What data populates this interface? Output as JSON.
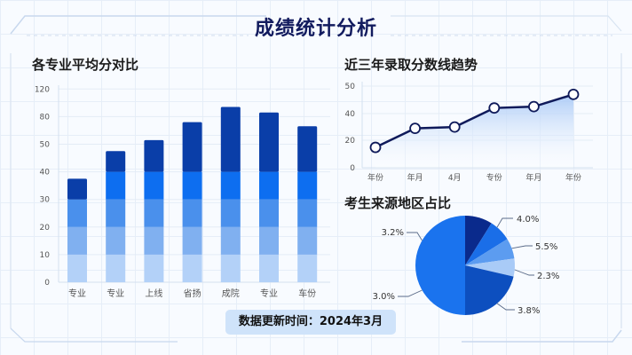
{
  "page": {
    "title": "成绩统计分析",
    "footer": "数据更新时间：2024年3月"
  },
  "colors": {
    "title": "#121b5e",
    "bar_segments": [
      "#b3d1f8",
      "#80b0f0",
      "#4a90ec",
      "#0d6ef0",
      "#0a3ea8"
    ],
    "line": "#0f1a5a",
    "area_top": "#a9c9f6",
    "pie": [
      "#0a2a8c",
      "#1a6ee8",
      "#5c9cf0",
      "#a9cbf7",
      "#0d4fbf",
      "#1a73ee"
    ]
  },
  "chart_data": [
    {
      "type": "bar",
      "title": "各专业平均分对比",
      "categories": [
        "专业",
        "专业",
        "上线",
        "省扬",
        "成院",
        "专业",
        "车份"
      ],
      "y_tick_labels": [
        "0",
        "10",
        "20",
        "30",
        "40",
        "50",
        "80",
        "120"
      ],
      "values": [
        37.5,
        47.5,
        51.5,
        58,
        63.5,
        61.5,
        56.5
      ],
      "stacked_segments_breaks": [
        10,
        20,
        30,
        40
      ],
      "xlabel": "",
      "ylabel": "",
      "grid": true
    },
    {
      "type": "area",
      "title": "近三年录取分数线趋势",
      "x": [
        "年份",
        "年月",
        "4月",
        "专份",
        "年月",
        "年份"
      ],
      "y_tick_labels": [
        "0",
        "20",
        "40",
        "50"
      ],
      "values": [
        15,
        29,
        30,
        44,
        45,
        54
      ],
      "grid": true
    },
    {
      "type": "pie",
      "title": "考生来源地区占比",
      "labels": [
        "4.0%",
        "5.5%",
        "2.3%",
        "3.8%",
        "3.0%",
        "3.2%"
      ],
      "slice_degrees": [
        32,
        26,
        24,
        21,
        77,
        180
      ],
      "label_positions": [
        "right-top",
        "right",
        "right",
        "right-bottom",
        "left-bottom",
        "left-top"
      ]
    }
  ]
}
